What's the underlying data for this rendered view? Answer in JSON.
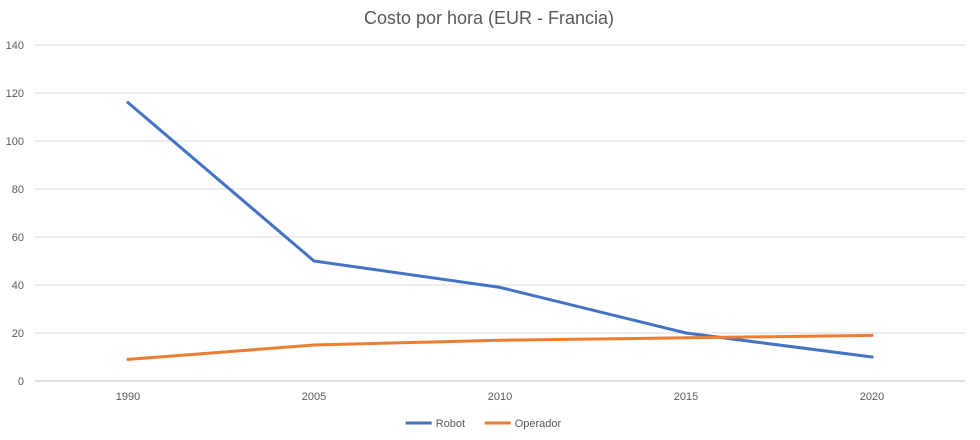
{
  "chart_data": {
    "type": "line",
    "title": "Costo por hora (EUR - Francia)",
    "xlabel": "",
    "ylabel": "",
    "categories": [
      "1990",
      "2005",
      "2010",
      "2015",
      "2020"
    ],
    "ylim": [
      0,
      140
    ],
    "yticks": [
      0,
      20,
      40,
      60,
      80,
      100,
      120,
      140
    ],
    "grid": true,
    "legend_position": "bottom",
    "series": [
      {
        "name": "Robot",
        "color": "#4472C4",
        "values": [
          116,
          50,
          39,
          20,
          10
        ]
      },
      {
        "name": "Operador",
        "color": "#ED7D31",
        "values": [
          9,
          15,
          17,
          18,
          19
        ]
      }
    ]
  }
}
